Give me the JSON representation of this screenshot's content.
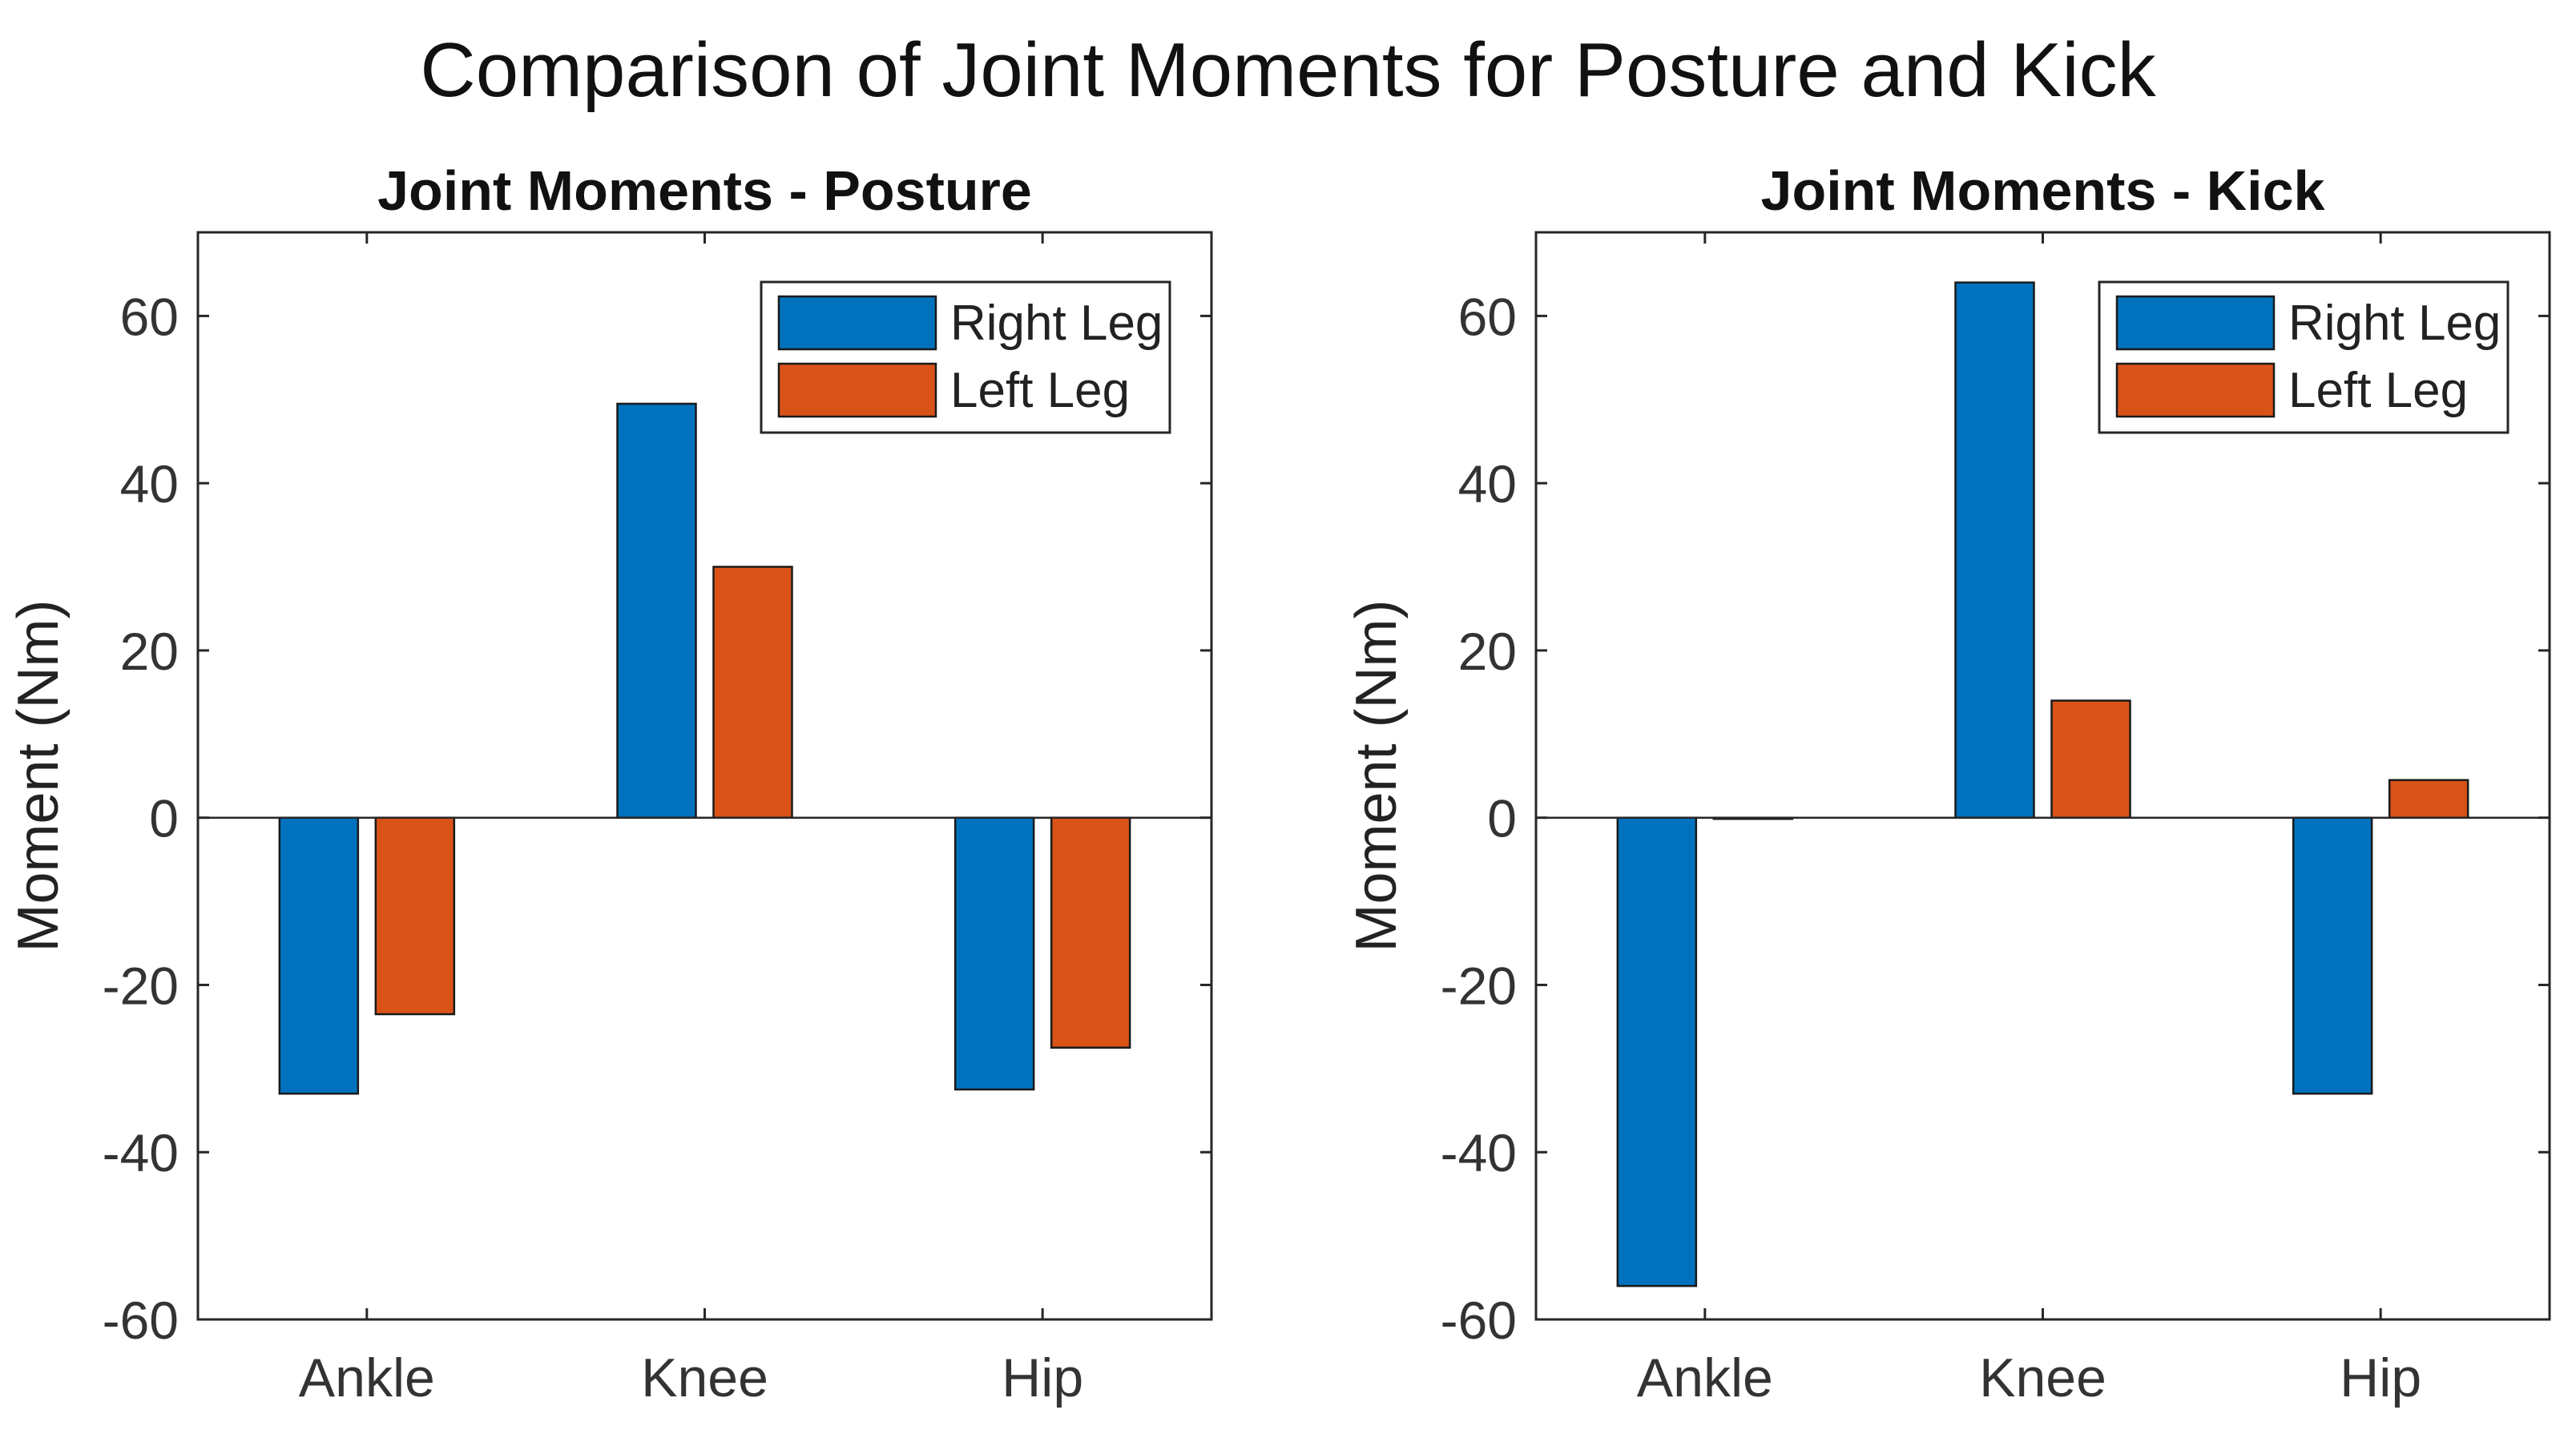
{
  "figure": {
    "title": "Comparison of Joint Moments for Posture and Kick"
  },
  "colors": {
    "right_leg": "#0072BD",
    "left_leg": "#D95319",
    "axis": "#262626",
    "background": "#ffffff"
  },
  "chart_data": [
    {
      "type": "bar",
      "title": "Joint Moments - Posture",
      "xlabel": "",
      "ylabel": "Moment (Nm)",
      "categories": [
        "Ankle",
        "Knee",
        "Hip"
      ],
      "series": [
        {
          "name": "Right Leg",
          "values": [
            -33,
            49.5,
            -32.5
          ]
        },
        {
          "name": "Left Leg",
          "values": [
            -23.5,
            30,
            -27.5
          ]
        }
      ],
      "ylim": [
        -60,
        70
      ],
      "yticks": [
        -60,
        -40,
        -20,
        0,
        20,
        40,
        60
      ],
      "grid": false,
      "legend": "top-right"
    },
    {
      "type": "bar",
      "title": "Joint Moments - Kick",
      "xlabel": "",
      "ylabel": "Moment (Nm)",
      "categories": [
        "Ankle",
        "Knee",
        "Hip"
      ],
      "series": [
        {
          "name": "Right Leg",
          "values": [
            -56,
            64,
            -33
          ]
        },
        {
          "name": "Left Leg",
          "values": [
            0,
            14,
            4.5
          ]
        }
      ],
      "ylim": [
        -60,
        70
      ],
      "yticks": [
        -60,
        -40,
        -20,
        0,
        20,
        40,
        60
      ],
      "grid": false,
      "legend": "top-right"
    }
  ]
}
